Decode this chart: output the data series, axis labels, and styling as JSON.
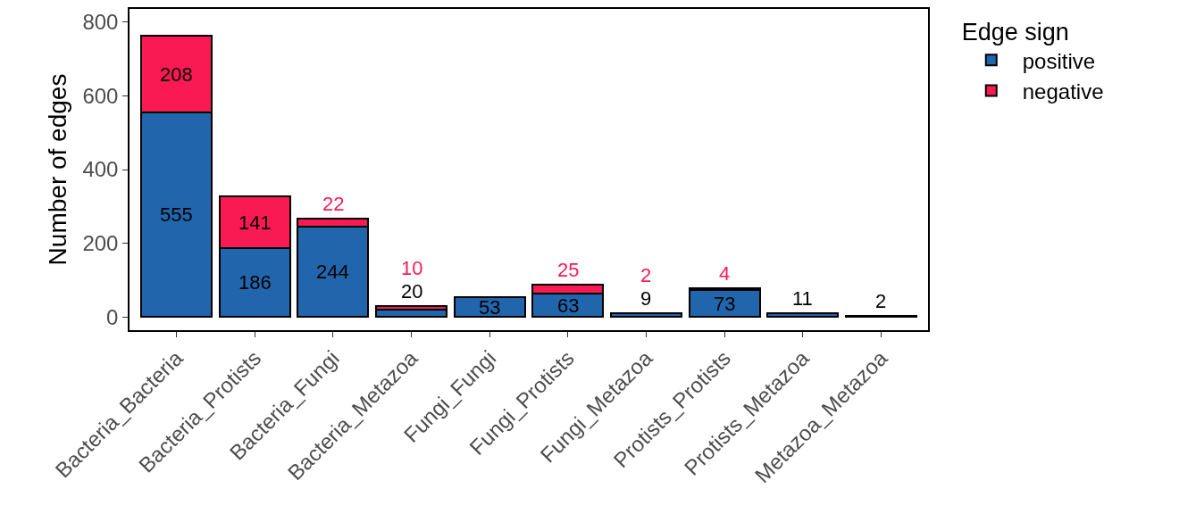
{
  "chart_data": {
    "type": "bar",
    "stacked": true,
    "ylabel": "Number of edges",
    "legend_title": "Edge sign",
    "legend": "right",
    "categories": [
      "Bacteria_Bacteria",
      "Bacteria_Protists",
      "Bacteria_Fungi",
      "Bacteria_Metazoa",
      "Fungi_Fungi",
      "Fungi_Protists",
      "Fungi_Metazoa",
      "Protists_Protists",
      "Protists_Metazoa",
      "Metazoa_Metazoa"
    ],
    "series": [
      {
        "name": "positive",
        "color": "#2166ac",
        "values": [
          555,
          186,
          244,
          20,
          53,
          63,
          9,
          73,
          11,
          2
        ]
      },
      {
        "name": "negative",
        "color": "#f91a54",
        "values": [
          208,
          141,
          22,
          10,
          null,
          25,
          2,
          4,
          null,
          null
        ]
      }
    ],
    "ylim": [
      -36,
      836
    ],
    "yticks": [
      0,
      200,
      400,
      600,
      800
    ],
    "grid": false,
    "data_labels": true
  }
}
